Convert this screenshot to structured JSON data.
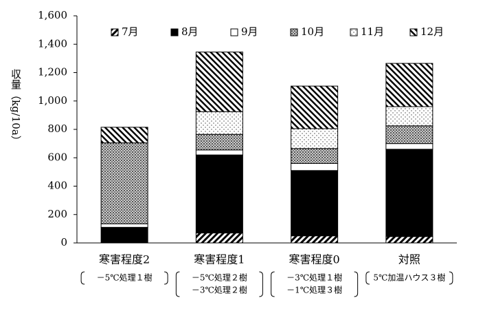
{
  "chart_data": {
    "type": "stacked_bar",
    "y_label": "収量（kg/10a）",
    "categories": [
      "寒害程度2",
      "寒害程度1",
      "寒害程度0",
      "対照"
    ],
    "notes": [
      [
        "－5℃処理１樹"
      ],
      [
        "－5℃処理２樹",
        "－3℃処理２樹"
      ],
      [
        "－3℃処理１樹",
        "－1℃処理３樹"
      ],
      [
        "5℃加温ハウス３樹"
      ]
    ],
    "series": [
      {
        "name": "7月",
        "color": "#000000",
        "pattern": "hatch-down",
        "values": [
          0,
          70,
          50,
          45
        ]
      },
      {
        "name": "8月",
        "color": "#000000",
        "pattern": "solid",
        "values": [
          110,
          550,
          460,
          615
        ]
      },
      {
        "name": "9月",
        "color": "#ffffff",
        "pattern": "solid",
        "values": [
          25,
          35,
          50,
          40
        ]
      },
      {
        "name": "10月",
        "color": "#888888",
        "pattern": "check",
        "values": [
          570,
          110,
          105,
          125
        ]
      },
      {
        "name": "11月",
        "color": "#ffffff",
        "pattern": "dots",
        "values": [
          0,
          160,
          140,
          135
        ]
      },
      {
        "name": "12月",
        "color": "#000000",
        "pattern": "hatch-up",
        "values": [
          110,
          420,
          300,
          305
        ]
      }
    ],
    "ylim": [
      0,
      1600
    ],
    "yticks": [
      0,
      200,
      400,
      600,
      800,
      {
        "value": 1000,
        "label": "1,000"
      },
      {
        "value": 1200,
        "label": "1,200"
      },
      {
        "value": 1400,
        "label": "1,400"
      },
      {
        "value": 1600,
        "label": "1,600"
      }
    ],
    "legend": "top"
  }
}
